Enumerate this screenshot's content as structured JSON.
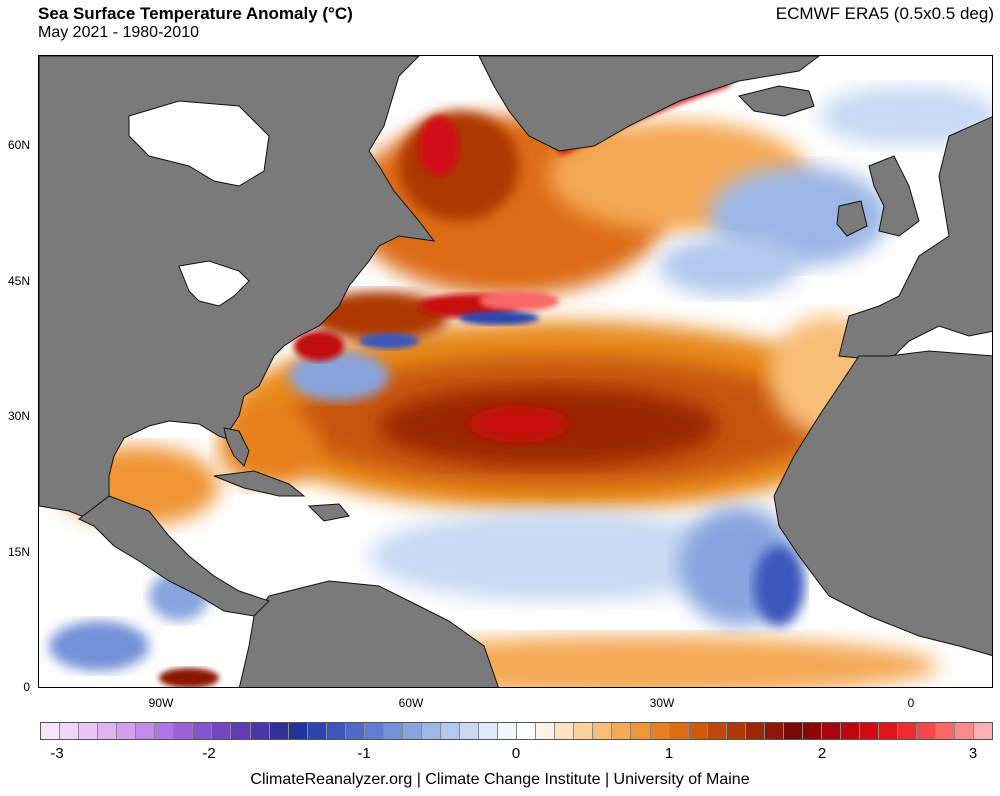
{
  "header": {
    "title": "Sea Surface Temperature Anomaly (°C)",
    "subtitle": "May 2021 - 1980-2010",
    "source": "ECMWF ERA5 (0.5x0.5 deg)"
  },
  "map": {
    "y_ticks": [
      "60N",
      "45N",
      "30N",
      "15N",
      "0"
    ],
    "x_ticks": [
      "90W",
      "60W",
      "30W",
      "0"
    ],
    "land_color": "#7a7a7a",
    "ocean_neutral_color": "#ffffff",
    "anomaly_regions": [
      "subtropical North Atlantic warm anomaly",
      "Gulf Stream warm/cold eddies",
      "Labrador Sea warm anomaly",
      "tropical Atlantic cool anomaly"
    ]
  },
  "colorbar": {
    "ticks": [
      "-3",
      "-2",
      "-1",
      "0",
      "1",
      "2",
      "3"
    ],
    "colors": [
      "#f7e6fb",
      "#f0d6f9",
      "#e8c6f6",
      "#dfb3f2",
      "#d19fee",
      "#c08ae8",
      "#ad76e1",
      "#9a63d8",
      "#8653cf",
      "#7446c4",
      "#5e3cb8",
      "#4a36aa",
      "#2f3196",
      "#22339c",
      "#2c45ae",
      "#3a57bc",
      "#4c6ac6",
      "#5f7ecf",
      "#7391d8",
      "#88a4df",
      "#9cb6e6",
      "#b2c8ee",
      "#c8d9f4",
      "#deeaf9",
      "#f2f7fd",
      "#ffffff",
      "#fff3e6",
      "#fde2c2",
      "#fbd09d",
      "#f8bd77",
      "#f4a954",
      "#ef9535",
      "#e8801f",
      "#dd6c12",
      "#cf590b",
      "#bf4707",
      "#ad3705",
      "#9b2705",
      "#8a1805",
      "#7a0a05",
      "#8e0507",
      "#a4060a",
      "#bb080e",
      "#d00a13",
      "#e3111a",
      "#f02b2f",
      "#f54848",
      "#f86867",
      "#fb8a89",
      "#fdb0b0"
    ]
  },
  "footer": {
    "credits": "ClimateReanalyzer.org | Climate Change Institute | University of Maine"
  }
}
